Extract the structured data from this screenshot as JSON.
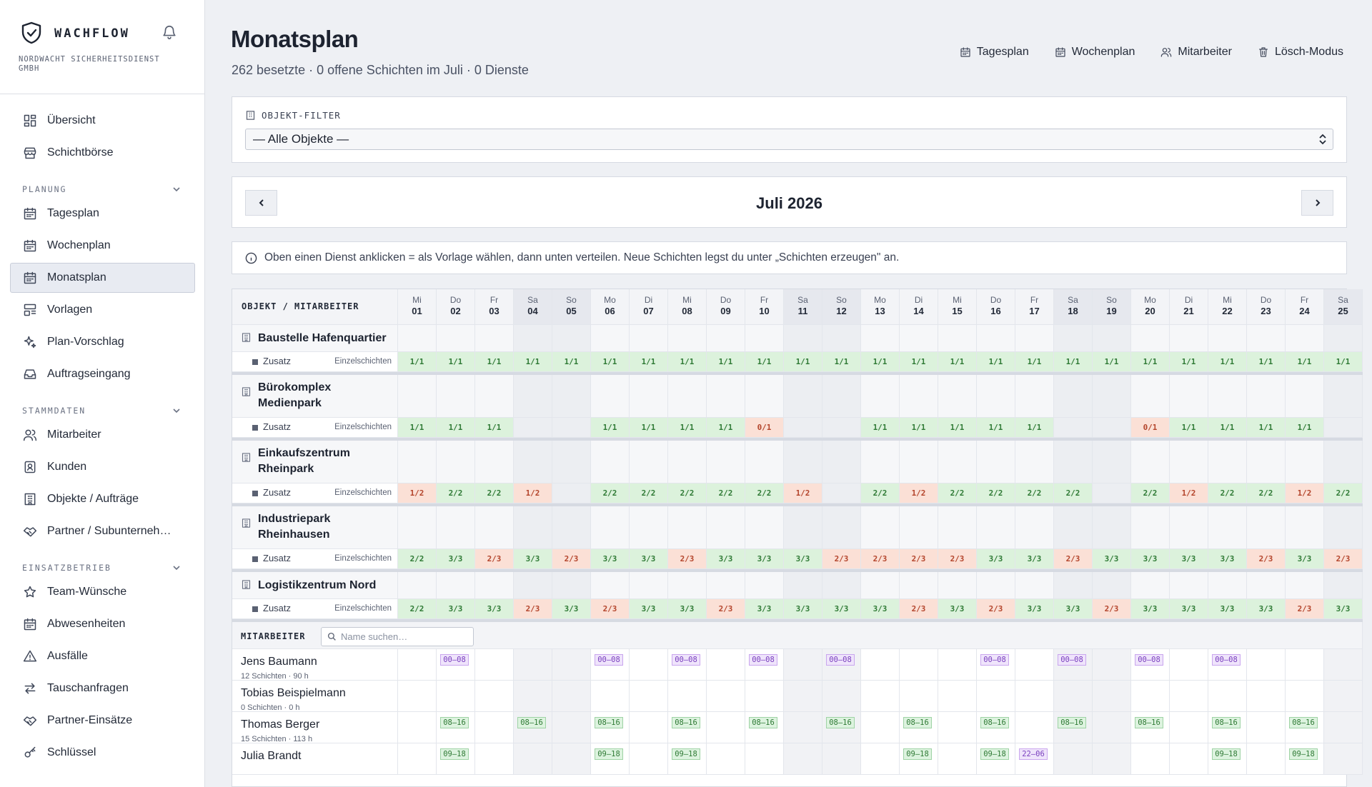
{
  "brand": {
    "name": "WACHFLOW",
    "company": "NORDWACHT SICHERHEITSDIENST GMBH"
  },
  "sidebar": {
    "top": [
      {
        "label": "Übersicht",
        "icon": "dashboard-icon"
      },
      {
        "label": "Schichtbörse",
        "icon": "store-icon"
      }
    ],
    "sections": [
      {
        "title": "PLANUNG",
        "items": [
          {
            "label": "Tagesplan",
            "icon": "calendar-icon"
          },
          {
            "label": "Wochenplan",
            "icon": "calendar-icon"
          },
          {
            "label": "Monatsplan",
            "icon": "calendar-icon",
            "active": true
          },
          {
            "label": "Vorlagen",
            "icon": "template-icon"
          },
          {
            "label": "Plan-Vorschlag",
            "icon": "sparkles-icon"
          },
          {
            "label": "Auftragseingang",
            "icon": "inbox-icon"
          }
        ]
      },
      {
        "title": "STAMMDATEN",
        "items": [
          {
            "label": "Mitarbeiter",
            "icon": "users-icon"
          },
          {
            "label": "Kunden",
            "icon": "contact-icon"
          },
          {
            "label": "Objekte / Aufträge",
            "icon": "building-icon"
          },
          {
            "label": "Partner / Subunterneh…",
            "icon": "handshake-icon"
          }
        ]
      },
      {
        "title": "EINSATZBETRIEB",
        "items": [
          {
            "label": "Team-Wünsche",
            "icon": "star-icon"
          },
          {
            "label": "Abwesenheiten",
            "icon": "calendar-icon"
          },
          {
            "label": "Ausfälle",
            "icon": "warning-icon"
          },
          {
            "label": "Tauschanfragen",
            "icon": "swap-icon"
          },
          {
            "label": "Partner-Einsätze",
            "icon": "handshake-icon"
          },
          {
            "label": "Schlüssel",
            "icon": "key-icon"
          }
        ]
      }
    ]
  },
  "header": {
    "title": "Monatsplan",
    "subtitle": "262 besetzte · 0 offene Schichten im Juli · 0 Dienste",
    "links": [
      {
        "label": "Tagesplan",
        "icon": "calendar-icon"
      },
      {
        "label": "Wochenplan",
        "icon": "calendar-icon"
      },
      {
        "label": "Mitarbeiter",
        "icon": "users-icon"
      },
      {
        "label": "Lösch-Modus",
        "icon": "trash-icon"
      }
    ]
  },
  "filter": {
    "label": "OBJEKT-FILTER",
    "value": "— Alle Objekte —"
  },
  "month": {
    "label": "Juli 2026"
  },
  "info": {
    "text": "Oben einen Dienst anklicken = als Vorlage wählen, dann unten verteilen. Neue Schichten legst du unter „Schichten erzeugen\" an."
  },
  "grid": {
    "corner": "OBJEKT / MITARBEITER",
    "days": [
      {
        "wd": "Mi",
        "d": "01"
      },
      {
        "wd": "Do",
        "d": "02"
      },
      {
        "wd": "Fr",
        "d": "03"
      },
      {
        "wd": "Sa",
        "d": "04"
      },
      {
        "wd": "So",
        "d": "05"
      },
      {
        "wd": "Mo",
        "d": "06"
      },
      {
        "wd": "Di",
        "d": "07"
      },
      {
        "wd": "Mi",
        "d": "08"
      },
      {
        "wd": "Do",
        "d": "09"
      },
      {
        "wd": "Fr",
        "d": "10"
      },
      {
        "wd": "Sa",
        "d": "11"
      },
      {
        "wd": "So",
        "d": "12"
      },
      {
        "wd": "Mo",
        "d": "13"
      },
      {
        "wd": "Di",
        "d": "14"
      },
      {
        "wd": "Mi",
        "d": "15"
      },
      {
        "wd": "Do",
        "d": "16"
      },
      {
        "wd": "Fr",
        "d": "17"
      },
      {
        "wd": "Sa",
        "d": "18"
      },
      {
        "wd": "So",
        "d": "19"
      },
      {
        "wd": "Mo",
        "d": "20"
      },
      {
        "wd": "Di",
        "d": "21"
      },
      {
        "wd": "Mi",
        "d": "22"
      },
      {
        "wd": "Do",
        "d": "23"
      },
      {
        "wd": "Fr",
        "d": "24"
      },
      {
        "wd": "Sa",
        "d": "25"
      }
    ],
    "objects": [
      {
        "name": [
          "Baustelle Hafenquartier"
        ],
        "sub": "Zusatz",
        "kind": "Einzelschichten",
        "vals": [
          "1/1",
          "1/1",
          "1/1",
          "1/1",
          "1/1",
          "1/1",
          "1/1",
          "1/1",
          "1/1",
          "1/1",
          "1/1",
          "1/1",
          "1/1",
          "1/1",
          "1/1",
          "1/1",
          "1/1",
          "1/1",
          "1/1",
          "1/1",
          "1/1",
          "1/1",
          "1/1",
          "1/1",
          "1/1"
        ]
      },
      {
        "name": [
          "Bürokomplex",
          "Medienpark"
        ],
        "sub": "Zusatz",
        "kind": "Einzelschichten",
        "vals": [
          "1/1",
          "1/1",
          "1/1",
          "",
          "",
          "1/1",
          "1/1",
          "1/1",
          "1/1",
          "0/1",
          "",
          "",
          "1/1",
          "1/1",
          "1/1",
          "1/1",
          "1/1",
          "",
          "",
          "0/1",
          "1/1",
          "1/1",
          "1/1",
          "1/1",
          ""
        ]
      },
      {
        "name": [
          "Einkaufszentrum",
          "Rheinpark"
        ],
        "sub": "Zusatz",
        "kind": "Einzelschichten",
        "vals": [
          "1/2",
          "2/2",
          "2/2",
          "1/2",
          "",
          "2/2",
          "2/2",
          "2/2",
          "2/2",
          "2/2",
          "1/2",
          "",
          "2/2",
          "1/2",
          "2/2",
          "2/2",
          "2/2",
          "2/2",
          "",
          "2/2",
          "1/2",
          "2/2",
          "2/2",
          "1/2",
          "2/2"
        ]
      },
      {
        "name": [
          "Industriepark",
          "Rheinhausen"
        ],
        "sub": "Zusatz",
        "kind": "Einzelschichten",
        "vals": [
          "2/2",
          "3/3",
          "2/3",
          "3/3",
          "2/3",
          "3/3",
          "3/3",
          "2/3",
          "3/3",
          "3/3",
          "3/3",
          "2/3",
          "2/3",
          "2/3",
          "2/3",
          "3/3",
          "3/3",
          "2/3",
          "3/3",
          "3/3",
          "3/3",
          "3/3",
          "2/3",
          "3/3",
          "2/3"
        ]
      },
      {
        "name": [
          "Logistikzentrum Nord"
        ],
        "sub": "Zusatz",
        "kind": "Einzelschichten",
        "vals": [
          "2/2",
          "3/3",
          "3/3",
          "2/3",
          "3/3",
          "2/3",
          "3/3",
          "3/3",
          "2/3",
          "3/3",
          "3/3",
          "3/3",
          "3/3",
          "2/3",
          "3/3",
          "2/3",
          "3/3",
          "3/3",
          "2/3",
          "3/3",
          "3/3",
          "3/3",
          "3/3",
          "2/3",
          "3/3"
        ]
      }
    ],
    "employees_label": "MITARBEITER",
    "search_placeholder": "Name suchen…",
    "employees": [
      {
        "name": "Jens Baumann",
        "stats": "12 Schichten · 90 h",
        "shifts": [
          {
            "day": 2,
            "t": "00–08",
            "c": "purple"
          },
          {
            "day": 6,
            "t": "00–08",
            "c": "purple"
          },
          {
            "day": 8,
            "t": "00–08",
            "c": "purple"
          },
          {
            "day": 10,
            "t": "00–08",
            "c": "purple"
          },
          {
            "day": 12,
            "t": "00–08",
            "c": "purple"
          },
          {
            "day": 16,
            "t": "00–08",
            "c": "purple"
          },
          {
            "day": 18,
            "t": "00–08",
            "c": "purple"
          },
          {
            "day": 20,
            "t": "00–08",
            "c": "purple"
          },
          {
            "day": 22,
            "t": "00–08",
            "c": "purple"
          }
        ]
      },
      {
        "name": "Tobias Beispielmann",
        "stats": "0 Schichten · 0 h",
        "shifts": []
      },
      {
        "name": "Thomas Berger",
        "stats": "15 Schichten · 113 h",
        "shifts": [
          {
            "day": 2,
            "t": "08–16",
            "c": "green"
          },
          {
            "day": 4,
            "t": "08–16",
            "c": "green"
          },
          {
            "day": 6,
            "t": "08–16",
            "c": "green"
          },
          {
            "day": 8,
            "t": "08–16",
            "c": "green"
          },
          {
            "day": 10,
            "t": "08–16",
            "c": "green"
          },
          {
            "day": 12,
            "t": "08–16",
            "c": "green"
          },
          {
            "day": 14,
            "t": "08–16",
            "c": "green"
          },
          {
            "day": 16,
            "t": "08–16",
            "c": "green"
          },
          {
            "day": 18,
            "t": "08–16",
            "c": "green"
          },
          {
            "day": 20,
            "t": "08–16",
            "c": "green"
          },
          {
            "day": 22,
            "t": "08–16",
            "c": "green"
          },
          {
            "day": 24,
            "t": "08–16",
            "c": "green"
          }
        ]
      },
      {
        "name": "Julia Brandt",
        "stats": "",
        "shifts": [
          {
            "day": 2,
            "t": "09–18",
            "c": "green"
          },
          {
            "day": 6,
            "t": "09–18",
            "c": "green"
          },
          {
            "day": 8,
            "t": "09–18",
            "c": "green"
          },
          {
            "day": 14,
            "t": "09–18",
            "c": "green"
          },
          {
            "day": 16,
            "t": "09–18",
            "c": "green"
          },
          {
            "day": 17,
            "t": "22–06",
            "c": "purple"
          },
          {
            "day": 22,
            "t": "09–18",
            "c": "green"
          },
          {
            "day": 24,
            "t": "09–18",
            "c": "green"
          }
        ]
      }
    ]
  },
  "colors": {
    "ok_bg": "#dcf2dc",
    "bad_bg": "#fbe0d6",
    "chip_purple": "#efe4fb",
    "chip_green": "#ddf3df",
    "active_nav": "#e8ebf2"
  }
}
